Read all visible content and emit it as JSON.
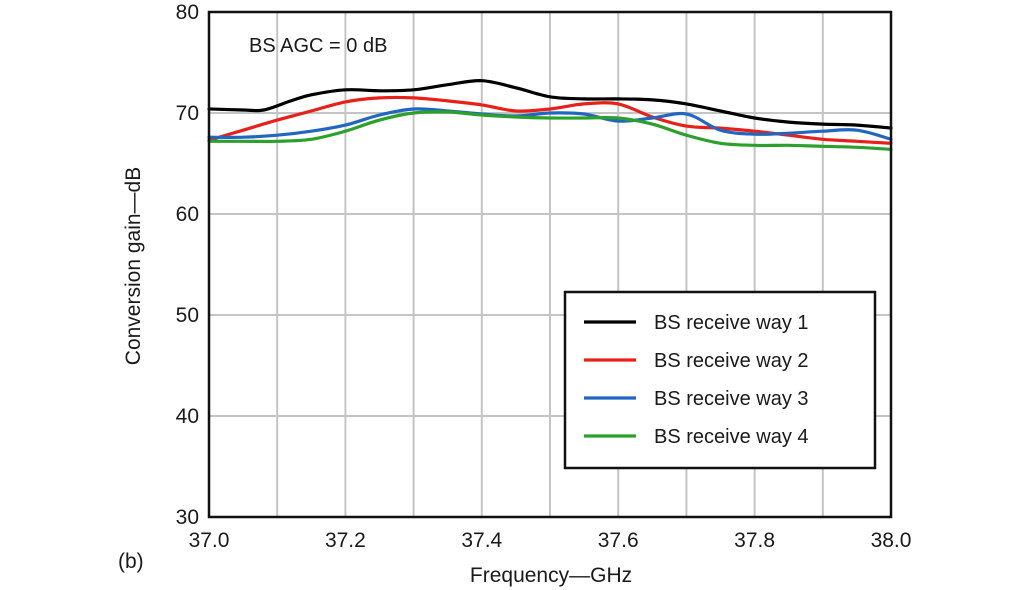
{
  "chart_data": {
    "type": "line",
    "panel_label": "(b)",
    "annotation": "BS AGC = 0 dB",
    "xlabel": "Frequency—GHz",
    "ylabel": "Conversion gain—dB",
    "xlim": [
      37.0,
      38.0
    ],
    "ylim": [
      30,
      80
    ],
    "xticks": [
      "37.0",
      "37.2",
      "37.4",
      "37.6",
      "37.8",
      "38.0"
    ],
    "xtick_values": [
      37.0,
      37.2,
      37.4,
      37.6,
      37.8,
      38.0
    ],
    "yticks": [
      "30",
      "40",
      "50",
      "60",
      "70",
      "80"
    ],
    "ytick_values": [
      30,
      40,
      50,
      60,
      70,
      80
    ],
    "x_minor_gridlines": [
      37.1,
      37.3,
      37.5,
      37.7,
      37.9
    ],
    "grid": true,
    "legend_position": "lower-right",
    "series": [
      {
        "name": "BS receive way 1",
        "color": "#000000",
        "x": [
          37.0,
          37.05,
          37.08,
          37.12,
          37.15,
          37.2,
          37.25,
          37.3,
          37.35,
          37.4,
          37.45,
          37.5,
          37.55,
          37.6,
          37.65,
          37.7,
          37.75,
          37.8,
          37.85,
          37.9,
          37.95,
          38.0
        ],
        "y": [
          70.4,
          70.3,
          70.3,
          71.2,
          71.8,
          72.3,
          72.2,
          72.3,
          72.8,
          73.2,
          72.5,
          71.6,
          71.4,
          71.4,
          71.3,
          70.9,
          70.2,
          69.5,
          69.1,
          68.9,
          68.8,
          68.5
        ]
      },
      {
        "name": "BS receive way 2",
        "color": "#e8201a",
        "x": [
          37.0,
          37.05,
          37.1,
          37.15,
          37.2,
          37.25,
          37.3,
          37.35,
          37.4,
          37.45,
          37.5,
          37.55,
          37.6,
          37.65,
          37.7,
          37.75,
          37.8,
          37.85,
          37.9,
          37.95,
          38.0
        ],
        "y": [
          67.3,
          68.3,
          69.3,
          70.2,
          71.1,
          71.5,
          71.5,
          71.2,
          70.8,
          70.2,
          70.4,
          70.9,
          70.9,
          69.6,
          68.7,
          68.5,
          68.2,
          67.8,
          67.4,
          67.2,
          67.0
        ]
      },
      {
        "name": "BS receive way 3",
        "color": "#2166c1",
        "x": [
          37.0,
          37.05,
          37.1,
          37.15,
          37.2,
          37.25,
          37.3,
          37.35,
          37.4,
          37.45,
          37.5,
          37.55,
          37.6,
          37.65,
          37.7,
          37.75,
          37.8,
          37.85,
          37.9,
          37.95,
          38.0
        ],
        "y": [
          67.6,
          67.6,
          67.8,
          68.2,
          68.8,
          69.8,
          70.4,
          70.2,
          69.9,
          69.7,
          70.0,
          69.9,
          69.2,
          69.5,
          69.9,
          68.3,
          67.9,
          68.0,
          68.2,
          68.3,
          67.4
        ]
      },
      {
        "name": "BS receive way 4",
        "color": "#2ca02c",
        "x": [
          37.0,
          37.05,
          37.1,
          37.15,
          37.2,
          37.25,
          37.3,
          37.35,
          37.4,
          37.45,
          37.5,
          37.55,
          37.6,
          37.65,
          37.7,
          37.75,
          37.8,
          37.85,
          37.9,
          37.95,
          38.0
        ],
        "y": [
          67.2,
          67.2,
          67.2,
          67.4,
          68.2,
          69.3,
          70.0,
          70.1,
          69.8,
          69.6,
          69.5,
          69.5,
          69.5,
          68.9,
          67.8,
          67.0,
          66.8,
          66.8,
          66.7,
          66.6,
          66.4
        ]
      }
    ]
  }
}
